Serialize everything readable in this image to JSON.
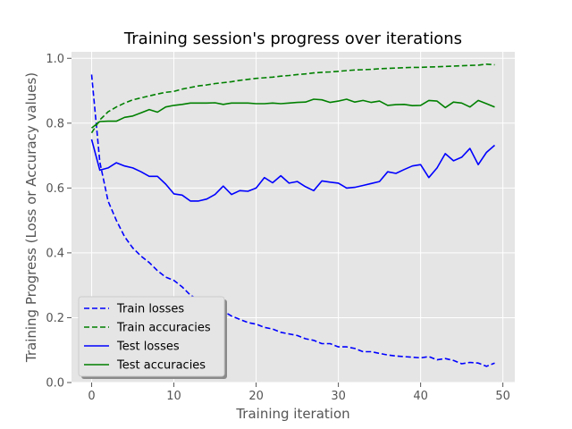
{
  "chart_data": {
    "type": "line",
    "title": "Training session's progress over iterations",
    "xlabel": "Training iteration",
    "ylabel": "Training Progress (Loss or Accuracy values)",
    "xlim": [
      -2.45,
      51.45
    ],
    "ylim": [
      0.0,
      1.02
    ],
    "xticks": [
      0,
      10,
      20,
      30,
      40,
      50
    ],
    "yticks": [
      0.0,
      0.2,
      0.4,
      0.6,
      0.8,
      1.0
    ],
    "grid": true,
    "legend_position": "bottom-left",
    "x": [
      0,
      1,
      2,
      3,
      4,
      5,
      6,
      7,
      8,
      9,
      10,
      11,
      12,
      13,
      14,
      15,
      16,
      17,
      18,
      19,
      20,
      21,
      22,
      23,
      24,
      25,
      26,
      27,
      28,
      29,
      30,
      31,
      32,
      33,
      34,
      35,
      36,
      37,
      38,
      39,
      40,
      41,
      42,
      43,
      44,
      45,
      46,
      47,
      48,
      49
    ],
    "series": [
      {
        "name": "Train losses",
        "color": "#0000ff",
        "style": "dashed",
        "values": [
          0.95,
          0.68,
          0.56,
          0.5,
          0.45,
          0.415,
          0.39,
          0.37,
          0.345,
          0.325,
          0.315,
          0.295,
          0.27,
          0.255,
          0.245,
          0.23,
          0.22,
          0.205,
          0.195,
          0.185,
          0.18,
          0.17,
          0.165,
          0.155,
          0.15,
          0.145,
          0.135,
          0.13,
          0.12,
          0.12,
          0.11,
          0.11,
          0.105,
          0.095,
          0.095,
          0.09,
          0.085,
          0.082,
          0.08,
          0.078,
          0.076,
          0.08,
          0.07,
          0.074,
          0.068,
          0.058,
          0.062,
          0.06,
          0.05,
          0.06
        ]
      },
      {
        "name": "Train accuracies",
        "color": "#008000",
        "style": "dashed",
        "values": [
          0.77,
          0.81,
          0.835,
          0.85,
          0.862,
          0.872,
          0.878,
          0.884,
          0.89,
          0.895,
          0.898,
          0.905,
          0.91,
          0.915,
          0.918,
          0.922,
          0.925,
          0.928,
          0.932,
          0.935,
          0.938,
          0.94,
          0.942,
          0.945,
          0.947,
          0.95,
          0.952,
          0.955,
          0.957,
          0.958,
          0.96,
          0.962,
          0.964,
          0.965,
          0.966,
          0.968,
          0.969,
          0.97,
          0.971,
          0.972,
          0.972,
          0.973,
          0.974,
          0.975,
          0.976,
          0.977,
          0.978,
          0.979,
          0.982,
          0.98
        ]
      },
      {
        "name": "Test losses",
        "color": "#0000ff",
        "style": "solid",
        "values": [
          0.75,
          0.655,
          0.662,
          0.678,
          0.668,
          0.662,
          0.65,
          0.636,
          0.636,
          0.612,
          0.582,
          0.578,
          0.56,
          0.56,
          0.566,
          0.58,
          0.606,
          0.58,
          0.592,
          0.59,
          0.6,
          0.632,
          0.616,
          0.638,
          0.615,
          0.62,
          0.604,
          0.592,
          0.622,
          0.618,
          0.615,
          0.6,
          0.602,
          0.608,
          0.614,
          0.62,
          0.65,
          0.645,
          0.657,
          0.668,
          0.672,
          0.632,
          0.662,
          0.706,
          0.684,
          0.695,
          0.722,
          0.672,
          0.71,
          0.732
        ]
      },
      {
        "name": "Test accuracies",
        "color": "#008000",
        "style": "solid",
        "values": [
          0.785,
          0.805,
          0.806,
          0.806,
          0.818,
          0.822,
          0.832,
          0.842,
          0.834,
          0.85,
          0.855,
          0.858,
          0.862,
          0.862,
          0.862,
          0.863,
          0.858,
          0.862,
          0.862,
          0.862,
          0.86,
          0.86,
          0.862,
          0.86,
          0.862,
          0.864,
          0.865,
          0.874,
          0.872,
          0.864,
          0.868,
          0.874,
          0.865,
          0.87,
          0.864,
          0.868,
          0.855,
          0.857,
          0.858,
          0.854,
          0.855,
          0.87,
          0.868,
          0.848,
          0.865,
          0.862,
          0.85,
          0.87,
          0.86,
          0.85
        ]
      }
    ]
  }
}
